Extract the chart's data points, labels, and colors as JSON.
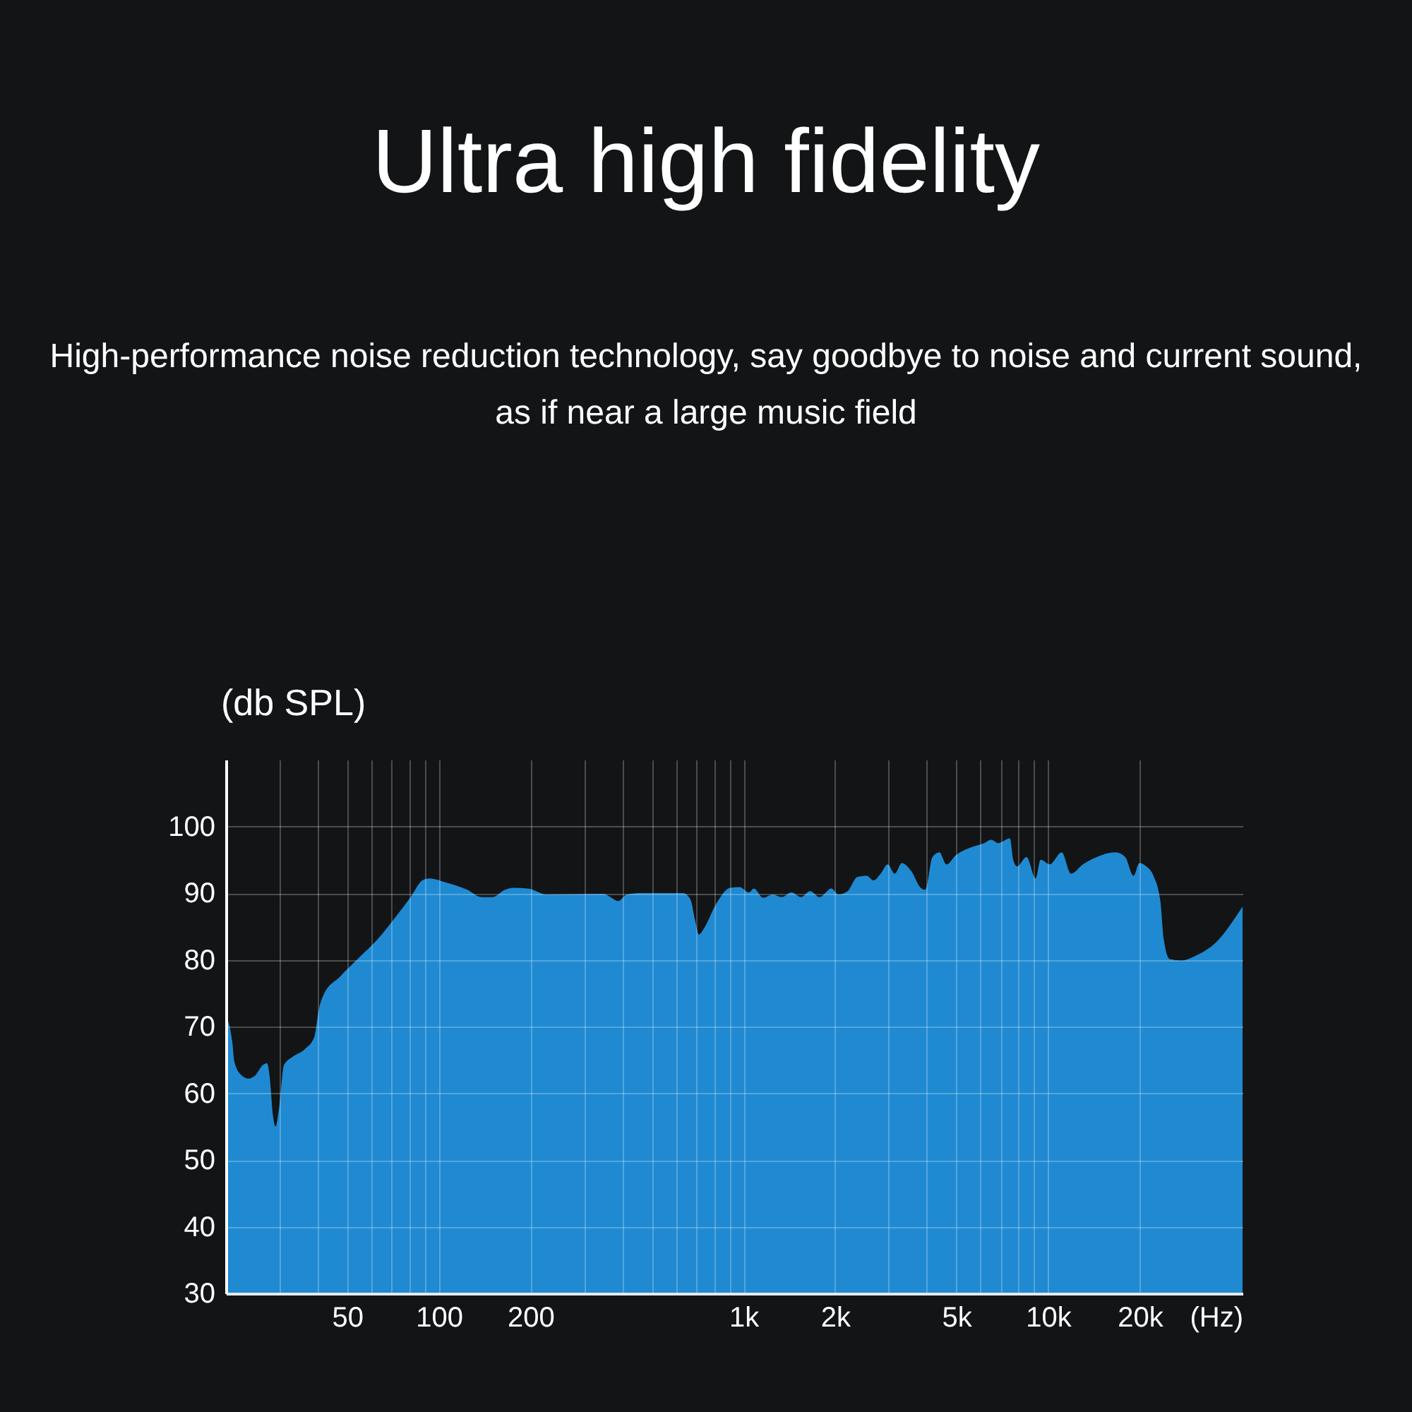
{
  "chart_data": {
    "type": "area",
    "title": "Ultra high fidelity",
    "subtitle": "High-performance noise reduction technology, say goodbye to noise and current sound, as if near a large music field",
    "xlabel": "(Hz)",
    "ylabel": "(db SPL)",
    "log": "x",
    "grid": true,
    "x": [
      20,
      21,
      21.3,
      22.5,
      23.7,
      25,
      26.4,
      27.3,
      27.8,
      28.6,
      29.1,
      29.9,
      31,
      33.2,
      36.3,
      39,
      40.4,
      41.8,
      47.4,
      54.6,
      63,
      72.6,
      80.8,
      88.3,
      93.1,
      107,
      124,
      138,
      150,
      165,
      176,
      196,
      226,
      347,
      366,
      388,
      414,
      461,
      634,
      669,
      694,
      713,
      744,
      814,
      905,
      971,
      1043,
      1081,
      1161,
      1247,
      1338,
      1437,
      1543,
      1656,
      1778,
      1943,
      2049,
      2200,
      2363,
      2536,
      2674,
      2821,
      2975,
      3138,
      3311,
      3555,
      3818,
      3955,
      4173,
      4399,
      4640,
      4984,
      5544,
      6169,
      6507,
      6864,
      7497,
      7684,
      7909,
      8495,
      9112,
      9449,
      10137,
      11086,
      11896,
      13016,
      14995,
      16679,
      17917,
      19099,
      19935,
      21024,
      22178,
      23383,
      23967,
      25090,
      27443,
      30514,
      35177,
      43500
    ],
    "series": [
      {
        "color": "#1f8ad2",
        "values": [
          71.6,
          67.6,
          64.8,
          62.7,
          62.2,
          62.7,
          64.2,
          64.5,
          62.7,
          56.4,
          55.0,
          57.8,
          64.2,
          65.5,
          66.6,
          68.4,
          72.6,
          74.7,
          77.5,
          80.3,
          83.1,
          86.6,
          89.4,
          91.9,
          92.2,
          91.5,
          90.5,
          89.4,
          89.4,
          90.5,
          90.8,
          90.7,
          89.8,
          89.9,
          89.4,
          88.8,
          89.8,
          90.0,
          90.0,
          89.1,
          85.9,
          83.8,
          84.8,
          88.4,
          90.8,
          90.9,
          90.1,
          90.7,
          89.3,
          89.8,
          89.4,
          90.1,
          89.4,
          90.3,
          89.4,
          90.7,
          89.8,
          90.3,
          92.4,
          92.6,
          91.9,
          92.9,
          94.3,
          92.9,
          94.5,
          93.3,
          90.8,
          90.5,
          95.4,
          96.1,
          94.3,
          95.7,
          96.8,
          97.5,
          98.0,
          97.5,
          98.2,
          95.0,
          94.0,
          95.4,
          92.2,
          95.0,
          94.3,
          96.1,
          92.9,
          94.3,
          95.7,
          96.1,
          95.4,
          92.6,
          94.5,
          94.0,
          92.6,
          88.7,
          83.1,
          80.1,
          79.9,
          80.6,
          82.4,
          88.0
        ]
      }
    ],
    "xlim": [
      20,
      43500
    ],
    "ylim": [
      30,
      110
    ],
    "xticks": [
      {
        "value": 30,
        "label": null
      },
      {
        "value": 40,
        "label": null
      },
      50,
      {
        "value": 60,
        "label": null
      },
      {
        "value": 70,
        "label": null
      },
      {
        "value": 80,
        "label": null
      },
      {
        "value": 90,
        "label": null
      },
      100,
      200,
      {
        "value": 300,
        "label": null
      },
      {
        "value": 400,
        "label": null
      },
      {
        "value": 500,
        "label": null
      },
      {
        "value": 600,
        "label": null
      },
      {
        "value": 700,
        "label": null
      },
      {
        "value": 800,
        "label": null
      },
      {
        "value": 900,
        "label": null
      },
      {
        "value": 1000,
        "label": "1k"
      },
      {
        "value": 2000,
        "label": "2k"
      },
      {
        "value": 3000,
        "label": null
      },
      {
        "value": 4000,
        "label": null
      },
      {
        "value": 5000,
        "label": "5k"
      },
      {
        "value": 6000,
        "label": null
      },
      {
        "value": 7000,
        "label": null
      },
      {
        "value": 8000,
        "label": null
      },
      {
        "value": 9000,
        "label": null
      },
      {
        "value": 10000,
        "label": "10k"
      },
      {
        "value": 20000,
        "label": "20k"
      }
    ],
    "yticks": [
      30,
      40,
      50,
      60,
      70,
      80,
      90,
      100
    ]
  }
}
